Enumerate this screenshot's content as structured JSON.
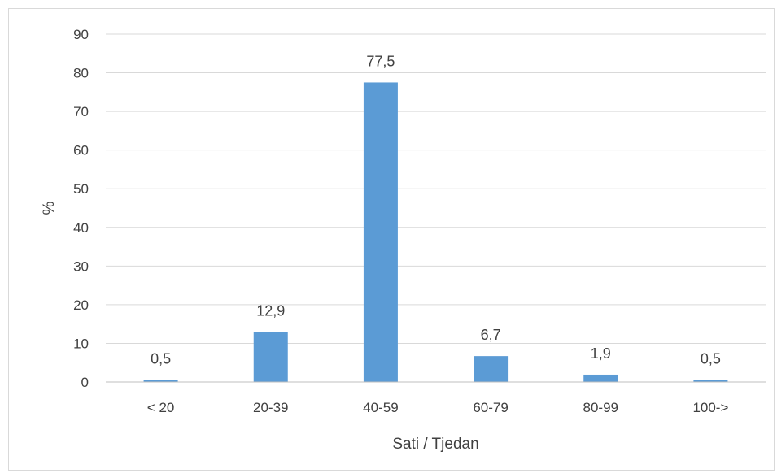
{
  "chart_data": {
    "type": "bar",
    "categories": [
      "< 20",
      "20-39",
      "40-59",
      "60-79",
      "80-99",
      "100->"
    ],
    "values": [
      0.5,
      12.9,
      77.5,
      6.7,
      1.9,
      0.5
    ],
    "value_labels": [
      "0,5",
      "12,9",
      "77,5",
      "6,7",
      "1,9",
      "0,5"
    ],
    "title": "",
    "xlabel": "Sati / Tjedan",
    "ylabel": "%",
    "ylim": [
      0,
      90
    ],
    "yticks": [
      0,
      10,
      20,
      30,
      40,
      50,
      60,
      70,
      80,
      90
    ],
    "grid": true,
    "legend": "none",
    "colors": {
      "bar": "#5b9bd5",
      "grid": "#d9d9d9",
      "axis": "#bfbfbf",
      "text": "#404040"
    }
  }
}
